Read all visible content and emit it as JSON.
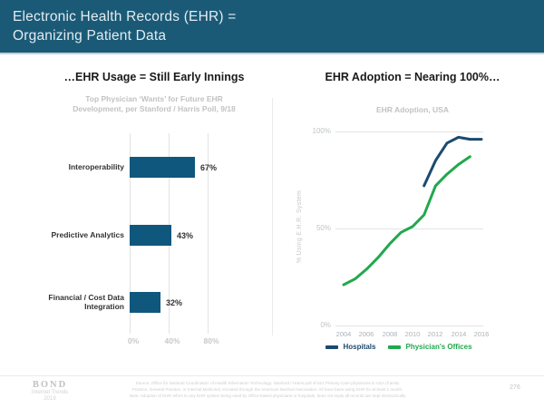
{
  "slide": {
    "title": "Electronic Health Records (EHR) =\nOrganizing Patient Data",
    "page_number": "276"
  },
  "footer": {
    "logo_name": "BOND",
    "logo_line2": "Internet Trends",
    "logo_line3": "2019",
    "source": "Source: Office for National Coordination of Health Information Technology; Stanford / Harris poll of 521 Primary Care physicians in USA (Family\nPractice, General Practice, or Internal Medicine) recruited through the American Medical Association.  All have been using EHR for at least 1 month.\nNote: Adoption of EHR refers to any EHR system being used by Office-based physicians or hospitals, does not imply all records are kept electronically"
  },
  "colors": {
    "header_background": "#1B5A76",
    "bar_fill": "#0F577D",
    "hospitals_line": "#1B4A6F",
    "physicians_offices_line": "#21A84D",
    "gridline": "#E4E4E4"
  },
  "chart_data": [
    {
      "type": "bar",
      "orientation": "horizontal",
      "title": "…EHR Usage = Still Early Innings",
      "subtitle": "Top Physician ‘Wants’ for Future EHR\nDevelopment, per Stanford / Harris Poll, 9/18",
      "categories": [
        "Interoperability",
        "Predictive Analytics",
        "Financial / Cost Data Integration"
      ],
      "values": [
        67,
        43,
        32
      ],
      "value_labels": [
        "67%",
        "43%",
        "32%"
      ],
      "xticks": [
        "0%",
        "40%",
        "80%"
      ],
      "xlim": [
        0,
        100
      ],
      "bar_color": "#0F577D",
      "grid": "vertical"
    },
    {
      "type": "line",
      "title": "EHR Adoption = Nearing 100%…",
      "subtitle": "EHR Adoption, USA",
      "ylabel": "% Using E.H.R. System",
      "ylim": [
        0,
        100
      ],
      "yticks": [
        "100%",
        "50%",
        "0%"
      ],
      "xticks": [
        "2004",
        "2006",
        "2008",
        "2010",
        "2012",
        "2014",
        "2016"
      ],
      "legend_position": "bottom",
      "grid": "horizontal",
      "series": [
        {
          "name": "Hospitals",
          "color": "#1B4A6F",
          "x": [
            2011,
            2012,
            2013,
            2014,
            2015,
            2016
          ],
          "values": [
            72,
            85,
            94,
            97,
            96,
            96
          ]
        },
        {
          "name": "Physician's Offices",
          "color": "#21A84D",
          "x": [
            2004,
            2005,
            2006,
            2007,
            2008,
            2009,
            2010,
            2011,
            2012,
            2013,
            2014,
            2015
          ],
          "values": [
            21,
            24,
            29,
            35,
            42,
            48,
            51,
            57,
            72,
            78,
            83,
            87
          ]
        }
      ]
    }
  ]
}
